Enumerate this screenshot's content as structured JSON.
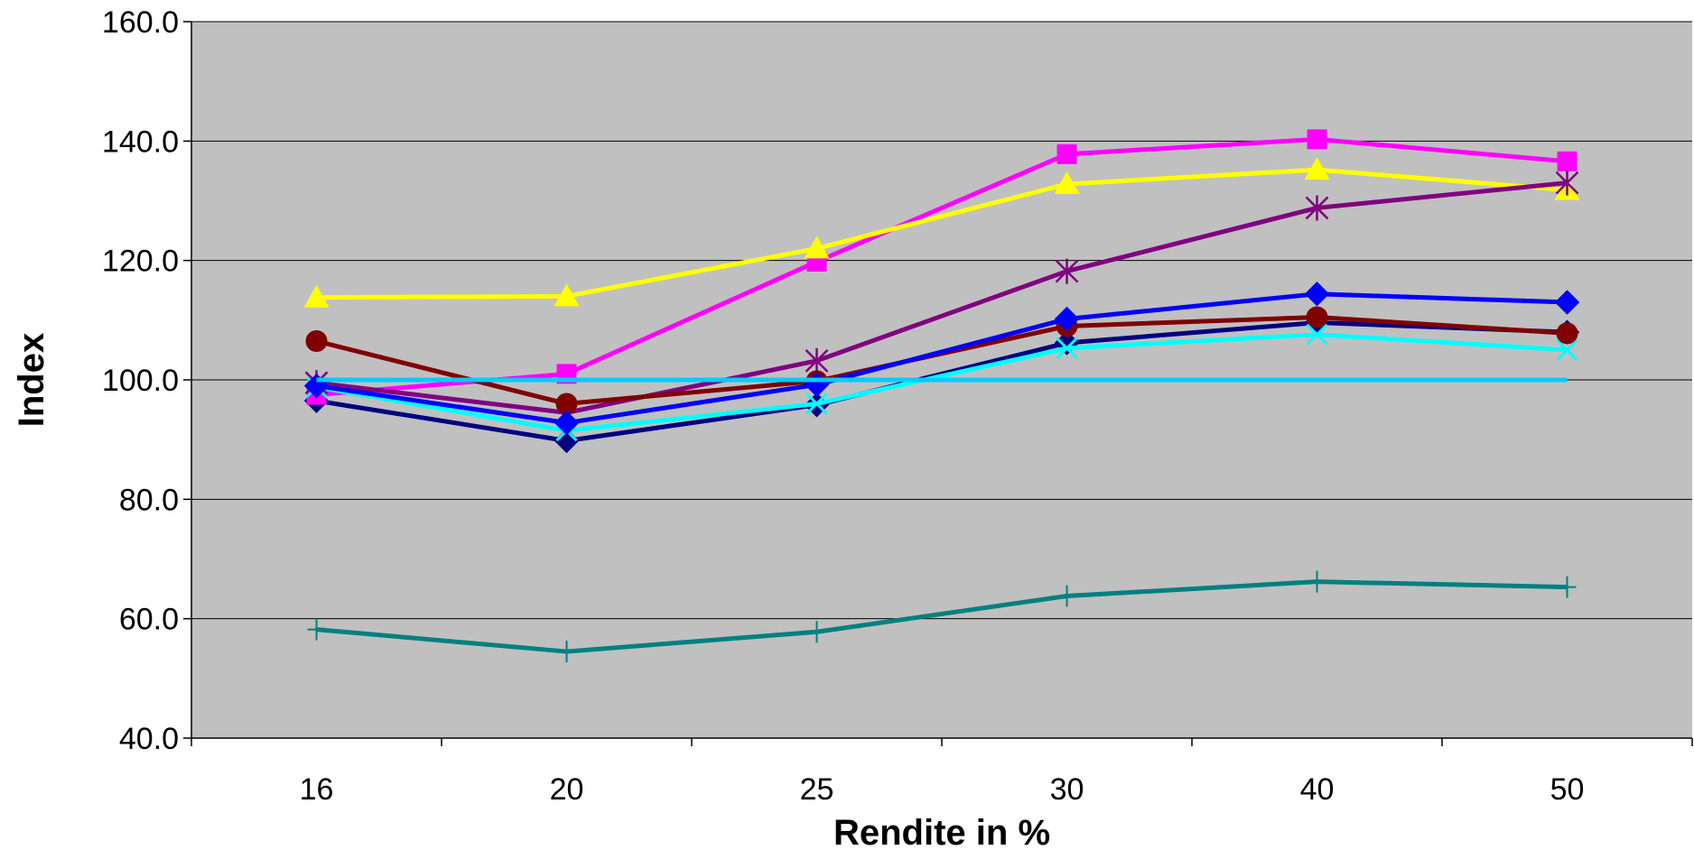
{
  "chart_data": {
    "type": "line",
    "title": "",
    "xlabel": "Rendite in %",
    "ylabel": "Index",
    "categories": [
      "16",
      "20",
      "25",
      "30",
      "40",
      "50"
    ],
    "ylim": [
      40,
      160
    ],
    "yticks": [
      40,
      60,
      80,
      100,
      120,
      140,
      160
    ],
    "ytick_labels": [
      "40.0",
      "60.0",
      "80.0",
      "100.0",
      "120.0",
      "140.0",
      "160.0"
    ],
    "grid": true,
    "legend": "none",
    "plot_background": "#c0c0c0",
    "series": [
      {
        "color": "#000080",
        "marker": "diamond",
        "values": [
          96.5,
          89.8,
          95.8,
          106.2,
          109.6,
          108.0
        ]
      },
      {
        "color": "#ff00ff",
        "marker": "square",
        "values": [
          97.5,
          101.0,
          119.8,
          137.8,
          140.3,
          136.6
        ]
      },
      {
        "color": "#ffff00",
        "marker": "triangle",
        "values": [
          113.8,
          114.0,
          122.0,
          132.8,
          135.2,
          131.8
        ]
      },
      {
        "color": "#00ffff",
        "marker": "x",
        "values": [
          98.8,
          91.5,
          96.0,
          105.3,
          107.6,
          105.0
        ]
      },
      {
        "color": "#800080",
        "marker": "asterisk",
        "values": [
          99.5,
          94.5,
          103.2,
          118.2,
          128.8,
          133.0
        ]
      },
      {
        "color": "#800000",
        "marker": "circle",
        "values": [
          106.5,
          96.0,
          99.8,
          109.0,
          110.5,
          107.8
        ]
      },
      {
        "color": "#0000ff",
        "marker": "diamond",
        "values": [
          99.0,
          92.8,
          99.2,
          110.2,
          114.4,
          113.0
        ]
      },
      {
        "color": "#00ccff",
        "marker": "none",
        "values": [
          100.0,
          100.0,
          100.0,
          100.0,
          100.0,
          100.0
        ]
      },
      {
        "color": "#008080",
        "marker": "plus",
        "values": [
          58.2,
          54.5,
          57.8,
          63.8,
          66.2,
          65.3
        ]
      }
    ]
  }
}
